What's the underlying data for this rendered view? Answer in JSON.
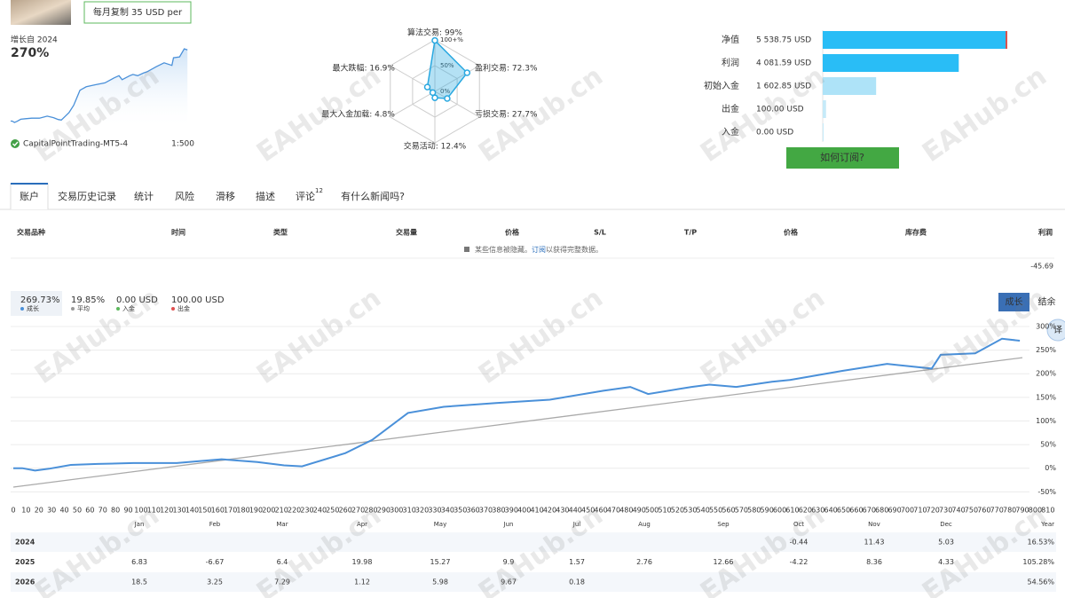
{
  "header": {
    "subscribe_button": "每月复制 35 USD per",
    "growth_since": "增长自 2024",
    "growth": "270%",
    "server": "CapitalPointTrading-MT5-4",
    "leverage": "1:500"
  },
  "radar": {
    "max": 100,
    "color": "#29a8e0",
    "rings": [
      {
        "value": 100,
        "label": "100+%"
      },
      {
        "value": 50,
        "label": "50%"
      },
      {
        "value": 0,
        "label": "0%"
      }
    ],
    "axes": [
      {
        "label": "算法交易: 99%",
        "value": 99
      },
      {
        "label": "盈利交易: 72.3%",
        "value": 72.3
      },
      {
        "label": "亏损交易: 27.7%",
        "value": 27.7
      },
      {
        "label": "交易活动: 12.4%",
        "value": 12.4
      },
      {
        "label": "最大入金加载: 4.8%",
        "value": 4.8
      },
      {
        "label": "最大跌幅: 16.9%",
        "value": 16.9
      }
    ]
  },
  "balance": {
    "xlim": [
      0,
      5538.75
    ],
    "button": "如何订阅?",
    "rows": [
      {
        "label": "净值",
        "value": 5538.75,
        "value_label": "5 538.75 USD",
        "color": "#29bdf6"
      },
      {
        "label": "利润",
        "value": 4081.59,
        "value_label": "4 081.59 USD",
        "color": "#29bdf6"
      },
      {
        "label": "初始入金",
        "value": 1602.85,
        "value_label": "1 602.85 USD",
        "color": "#aee3f8"
      },
      {
        "label": "出金",
        "value": 100,
        "value_label": "100.00 USD",
        "color": "#c6eaf9"
      },
      {
        "label": "入金",
        "value": 0,
        "value_label": "0.00 USD",
        "color": "#c6eaf9"
      }
    ]
  },
  "tabs": {
    "items": [
      "账户",
      "交易历史记录",
      "统计",
      "风险",
      "滑移",
      "描述",
      "评论",
      "有什么新闻吗?"
    ],
    "active": 0,
    "comment_count": 12
  },
  "trades": {
    "headers": [
      "交易品种",
      "时间",
      "类型",
      "交易量",
      "价格",
      "S/L",
      "T/P",
      "价格",
      "库存费",
      "利润"
    ],
    "notice": "某些信息被隐藏。",
    "notice_link": "订阅",
    "notice_tail": "以获得完整数据。",
    "profit": -45.69
  },
  "stats": [
    {
      "value": "269.73%",
      "label": "成长",
      "color": "#4a90d9"
    },
    {
      "value": "19.85%",
      "label": "平均",
      "color": "#999999"
    },
    {
      "value": "0.00 USD",
      "label": "入金",
      "color": "#5cb85c"
    },
    {
      "value": "100.00 USD",
      "label": "出金",
      "color": "#e05050"
    }
  ],
  "chart": {
    "buttons": [
      "成长",
      "结余"
    ],
    "active": 0,
    "translate": "译",
    "grid": true,
    "xlim": [
      0,
      815
    ],
    "ylim": [
      -70,
      315
    ],
    "xticks": [
      0,
      10,
      20,
      30,
      40,
      50,
      60,
      70,
      80,
      90,
      100,
      110,
      120,
      130,
      140,
      150,
      160,
      170,
      180,
      190,
      200,
      210,
      220,
      230,
      240,
      250,
      260,
      270,
      280,
      290,
      300,
      310,
      320,
      330,
      340,
      350,
      360,
      370,
      380,
      390,
      400,
      410,
      420,
      430,
      440,
      450,
      460,
      470,
      480,
      490,
      500,
      510,
      520,
      530,
      540,
      550,
      560,
      570,
      580,
      590,
      600,
      610,
      620,
      630,
      640,
      650,
      660,
      670,
      680,
      690,
      700,
      710,
      720,
      730,
      740,
      750,
      760,
      770,
      780,
      790,
      800,
      810
    ],
    "yticks": [
      {
        "value": 300,
        "label": "300%"
      },
      {
        "value": 250,
        "label": "250%"
      },
      {
        "value": 200,
        "label": "200%"
      },
      {
        "value": 150,
        "label": "150%"
      },
      {
        "value": 100,
        "label": "100%"
      },
      {
        "value": 50,
        "label": "50%"
      },
      {
        "value": 0,
        "label": "0%"
      },
      {
        "value": -50,
        "label": "-50%"
      }
    ],
    "series": [
      {
        "color": "#4a90d9",
        "x": [
          0,
          7,
          17,
          28,
          45,
          66,
          94,
          128,
          163,
          191,
          212,
          226,
          260,
          281,
          309,
          337,
          378,
          420,
          462,
          483,
          497,
          531,
          545,
          566,
          594,
          608,
          649,
          684,
          719,
          726,
          753,
          774,
          788
        ],
        "values": [
          0,
          0,
          -5,
          -1,
          7,
          9,
          11,
          11,
          19,
          13,
          6,
          4,
          32,
          60,
          117,
          130,
          138,
          145,
          164,
          172,
          157,
          172,
          177,
          172,
          183,
          187,
          206,
          221,
          211,
          240,
          243,
          274,
          270
        ]
      },
      {
        "color": "#aaaaaa",
        "x": [
          0,
          790
        ],
        "values": [
          -40,
          234
        ]
      }
    ]
  },
  "monthly": {
    "columns": [
      "Jan",
      "Feb",
      "Mar",
      "Apr",
      "May",
      "Jun",
      "Jul",
      "Aug",
      "Sep",
      "Oct",
      "Nov",
      "Dec",
      "Year"
    ],
    "rows": [
      {
        "year": "2024",
        "values": [
          null,
          null,
          null,
          null,
          null,
          null,
          null,
          null,
          null,
          -0.44,
          11.43,
          5.03
        ],
        "total": "16.53%"
      },
      {
        "year": "2025",
        "values": [
          6.83,
          -6.67,
          6.4,
          19.98,
          15.27,
          9.9,
          1.57,
          2.76,
          12.66,
          -4.22,
          8.36,
          4.33
        ],
        "total": "105.28%"
      },
      {
        "year": "2026",
        "values": [
          18.5,
          3.25,
          7.29,
          1.12,
          5.98,
          9.67,
          0.18,
          null,
          null,
          null,
          null,
          null
        ],
        "total": "54.56%"
      }
    ]
  },
  "watermark": "EAHub.cn"
}
